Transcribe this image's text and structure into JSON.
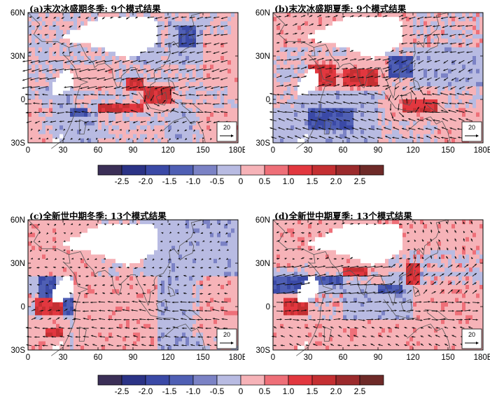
{
  "panels": [
    {
      "id": "a",
      "title": "(a)末次冰盛期冬季: 9个模式结果",
      "lat_labels": [
        "60N",
        "30N",
        "0",
        "30S"
      ],
      "lon_labels": [
        "0",
        "30",
        "60",
        "90",
        "120",
        "150",
        "180E"
      ],
      "ref_vector": "20",
      "pos_regions": [
        [
          95,
          125,
          -8,
          12
        ],
        [
          40,
          75,
          5,
          25
        ],
        [
          150,
          180,
          10,
          45
        ],
        [
          150,
          180,
          -30,
          -5
        ],
        [
          0,
          20,
          -30,
          0
        ],
        [
          60,
          100,
          -10,
          -2
        ]
      ],
      "neg_regions": [
        [
          10,
          40,
          -25,
          10
        ],
        [
          120,
          150,
          25,
          55
        ],
        [
          90,
          115,
          25,
          45
        ],
        [
          20,
          60,
          -30,
          -10
        ],
        [
          120,
          140,
          -30,
          -5
        ]
      ],
      "strong_pos": [
        [
          100,
          122,
          -4,
          8
        ],
        [
          60,
          100,
          -8,
          -4
        ],
        [
          85,
          100,
          5,
          15
        ]
      ],
      "strong_neg": [
        [
          35,
          50,
          -12,
          -5
        ],
        [
          130,
          145,
          35,
          50
        ]
      ],
      "wind": {
        "mode": "winter_lgm"
      }
    },
    {
      "id": "b",
      "title": "(b)末次冰盛期夏季: 9个模式结果",
      "lat_labels": [
        "60N",
        "30N",
        "0",
        "30S"
      ],
      "lon_labels": [
        "0",
        "30",
        "60",
        "90",
        "120",
        "150",
        "180E"
      ],
      "ref_vector": "20",
      "pos_regions": [
        [
          0,
          180,
          35,
          60
        ],
        [
          30,
          100,
          5,
          30
        ],
        [
          95,
          140,
          -15,
          5
        ],
        [
          140,
          180,
          -30,
          -5
        ]
      ],
      "neg_regions": [
        [
          20,
          90,
          -30,
          5
        ],
        [
          120,
          180,
          10,
          60
        ],
        [
          0,
          30,
          -30,
          -5
        ]
      ],
      "strong_pos": [
        [
          30,
          55,
          10,
          25
        ],
        [
          60,
          90,
          10,
          22
        ],
        [
          110,
          140,
          -10,
          0
        ]
      ],
      "strong_neg": [
        [
          30,
          70,
          -20,
          -5
        ],
        [
          100,
          120,
          15,
          30
        ]
      ],
      "wind": {
        "mode": "summer_lgm"
      }
    },
    {
      "id": "c",
      "title": "(c)全新世中期冬季: 13个模式结果",
      "lat_labels": [
        "60N",
        "30N",
        "0",
        "30S"
      ],
      "lon_labels": [
        "0",
        "30",
        "60",
        "90",
        "120",
        "150",
        "180E"
      ],
      "ref_vector": "20",
      "pos_regions": [
        [
          0,
          60,
          20,
          60
        ],
        [
          40,
          110,
          -30,
          20
        ],
        [
          140,
          180,
          -20,
          20
        ],
        [
          0,
          35,
          -30,
          10
        ]
      ],
      "neg_regions": [
        [
          100,
          180,
          20,
          60
        ],
        [
          0,
          40,
          -10,
          20
        ],
        [
          110,
          150,
          -30,
          20
        ]
      ],
      "strong_pos": [
        [
          5,
          30,
          -5,
          5
        ],
        [
          15,
          30,
          -20,
          -15
        ]
      ],
      "strong_neg": [
        [
          10,
          25,
          5,
          20
        ],
        [
          30,
          40,
          -5,
          5
        ]
      ],
      "wind": {
        "mode": "winter_mh"
      }
    },
    {
      "id": "d",
      "title": "(d)全新世中期夏季: 13个模式结果",
      "lat_labels": [
        "60N",
        "30N",
        "0",
        "30S"
      ],
      "lon_labels": [
        "0",
        "30",
        "60",
        "90",
        "120",
        "150",
        "180E"
      ],
      "ref_vector": "20",
      "pos_regions": [
        [
          0,
          180,
          25,
          60
        ],
        [
          0,
          60,
          -30,
          10
        ],
        [
          120,
          180,
          -10,
          20
        ],
        [
          60,
          180,
          -30,
          -10
        ]
      ],
      "neg_regions": [
        [
          30,
          120,
          -10,
          15
        ],
        [
          100,
          180,
          15,
          40
        ],
        [
          0,
          30,
          10,
          30
        ]
      ],
      "strong_pos": [
        [
          10,
          30,
          -5,
          5
        ],
        [
          60,
          80,
          20,
          28
        ],
        [
          115,
          125,
          15,
          30
        ]
      ],
      "strong_neg": [
        [
          0,
          30,
          10,
          20
        ],
        [
          35,
          60,
          15,
          22
        ],
        [
          90,
          110,
          8,
          15
        ]
      ],
      "wind": {
        "mode": "summer_mh"
      }
    }
  ],
  "colorbar": {
    "ticks": [
      "-2.5",
      "-2.0",
      "-1.5",
      "-1.0",
      "-0.5",
      "0",
      "0.5",
      "1.0",
      "1.5",
      "2.0",
      "2.5"
    ],
    "colors": [
      "#3b2f57",
      "#2b3386",
      "#3a49a6",
      "#4f5fb4",
      "#7b82c5",
      "#b8bbe2",
      "#f6b3b8",
      "#ee6f78",
      "#e2373f",
      "#c42f32",
      "#9b2a2c",
      "#6e2a28"
    ]
  }
}
